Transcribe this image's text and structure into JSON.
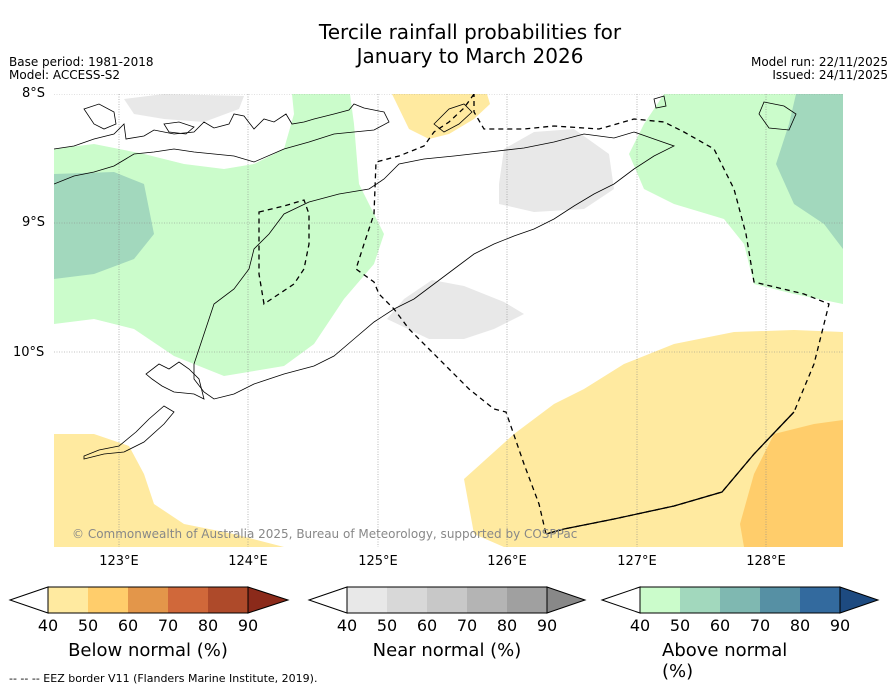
{
  "title_line1": "Tercile rainfall probabilities for",
  "title_line2": "January to March 2026",
  "base_period": "Base period: 1981-2018",
  "model": "Model: ACCESS-S2",
  "model_run": "Model run: 22/11/2025",
  "issued": "Issued: 24/11/2025",
  "lat_labels": [
    "8°S",
    "9°S",
    "10°S"
  ],
  "lon_labels": [
    "123°E",
    "124°E",
    "125°E",
    "126°E",
    "127°E",
    "128°E"
  ],
  "copyright": "© Commonwealth of Australia 2025, Bureau of Meteorology, supported by COSPPac",
  "legend": {
    "below": {
      "label": "Below normal (%)",
      "ticks": [
        "40",
        "50",
        "60",
        "70",
        "80",
        "90"
      ],
      "colors": [
        "#ffeaa0",
        "#ffcd6b",
        "#e3964a",
        "#d0683a",
        "#ae4a2a",
        "#8b2a1a"
      ]
    },
    "near": {
      "label": "Near normal (%)",
      "ticks": [
        "40",
        "50",
        "60",
        "70",
        "80",
        "90"
      ],
      "colors": [
        "#e8e8e8",
        "#d8d8d8",
        "#c8c8c8",
        "#b4b4b4",
        "#a0a0a0",
        "#888888"
      ]
    },
    "above": {
      "label": "Above normal (%)",
      "ticks": [
        "40",
        "50",
        "60",
        "70",
        "80",
        "90"
      ],
      "colors": [
        "#cbfccb",
        "#a2d8bd",
        "#7fb8b1",
        "#5690a4",
        "#336a9e",
        "#1d4a80"
      ]
    }
  },
  "eez_note": "--  --  -- EEZ border V11 (Flanders Marine Institute, 2019)."
}
